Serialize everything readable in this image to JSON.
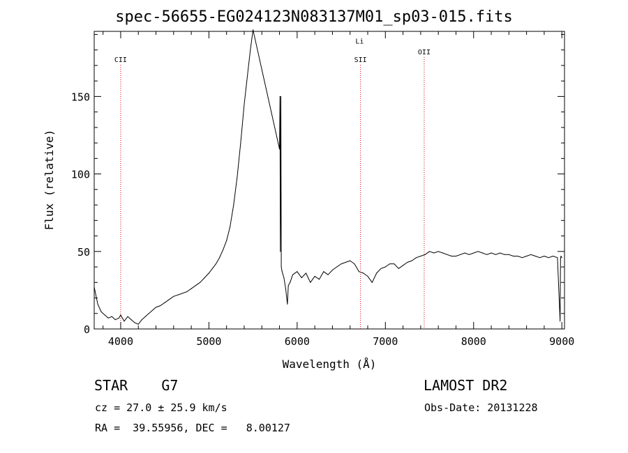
{
  "header": {
    "title": "spec-56655-EG024123N083137M01_sp03-015.fits"
  },
  "info": {
    "object_class": "STAR    G7",
    "survey": "LAMOST DR2",
    "redshift": "cz = 27.0 ± 25.9 km/s",
    "obs_date": "Obs-Date: 20131228",
    "coordinates": "RA =  39.55956, DEC =   8.00127"
  },
  "chart_data": {
    "type": "line",
    "xlabel": "Wavelength (Å)",
    "ylabel": "Flux (relative)",
    "xlim": [
      3700,
      9030
    ],
    "ylim": [
      0,
      192
    ],
    "xticks": [
      4000,
      5000,
      6000,
      7000,
      8000,
      9000
    ],
    "yticks": [
      0,
      50,
      100,
      150
    ],
    "grid": false,
    "line_color": "#000000",
    "marker_color": "#cc0000",
    "markers": [
      {
        "label": "CII",
        "x": 4000,
        "label_y": 174
      },
      {
        "label": "Li",
        "x": 6708,
        "label_y": 186
      },
      {
        "label": "SII",
        "x": 6718,
        "label_y": 174
      },
      {
        "label": "OII",
        "x": 7440,
        "label_y": 179
      }
    ],
    "series": [
      {
        "x": [
          3700,
          3740,
          3780,
          3820,
          3860,
          3900,
          3940,
          3980,
          4000,
          4040,
          4080,
          4120,
          4160,
          4200,
          4240,
          4280,
          4320,
          4360,
          4400,
          4450,
          4500,
          4550,
          4600,
          4650,
          4700,
          4750,
          4800,
          4850,
          4900,
          4950,
          5000,
          5040,
          5080,
          5120,
          5160,
          5200,
          5240,
          5280,
          5320,
          5360,
          5400,
          5440,
          5470,
          5500,
          5800,
          5805,
          5810,
          5815,
          5820,
          5830,
          5850,
          5870,
          5890,
          5900,
          5920,
          5950,
          6000,
          6050,
          6100,
          6150,
          6200,
          6250,
          6300,
          6350,
          6400,
          6450,
          6500,
          6550,
          6600,
          6650,
          6700,
          6750,
          6800,
          6850,
          6900,
          6950,
          7000,
          7050,
          7100,
          7150,
          7200,
          7250,
          7300,
          7350,
          7400,
          7450,
          7500,
          7550,
          7600,
          7650,
          7700,
          7750,
          7800,
          7850,
          7900,
          7950,
          8000,
          8050,
          8100,
          8150,
          8200,
          8250,
          8300,
          8350,
          8400,
          8450,
          8500,
          8550,
          8600,
          8650,
          8700,
          8750,
          8800,
          8850,
          8900,
          8950,
          8980,
          8985,
          8990,
          9000
        ],
        "y": [
          27,
          16,
          11,
          9,
          7,
          8,
          6,
          7,
          9,
          5,
          8,
          6,
          4,
          3,
          6,
          8,
          10,
          12,
          14,
          15,
          17,
          19,
          21,
          22,
          23,
          24,
          26,
          28,
          30,
          33,
          36,
          39,
          42,
          46,
          51,
          57,
          66,
          80,
          98,
          120,
          145,
          165,
          180,
          193,
          116,
          150,
          50,
          150,
          40,
          37,
          33,
          26,
          16,
          28,
          30,
          35,
          37,
          33,
          36,
          30,
          34,
          32,
          37,
          35,
          38,
          40,
          42,
          43,
          44,
          42,
          37,
          36,
          34,
          30,
          36,
          39,
          40,
          42,
          42,
          39,
          41,
          43,
          44,
          46,
          47,
          48,
          50,
          49,
          50,
          49,
          48,
          47,
          47,
          48,
          49,
          48,
          49,
          50,
          49,
          48,
          49,
          48,
          49,
          48,
          48,
          47,
          47,
          46,
          47,
          48,
          47,
          46,
          47,
          46,
          47,
          46,
          5,
          45,
          47,
          46
        ]
      }
    ]
  }
}
